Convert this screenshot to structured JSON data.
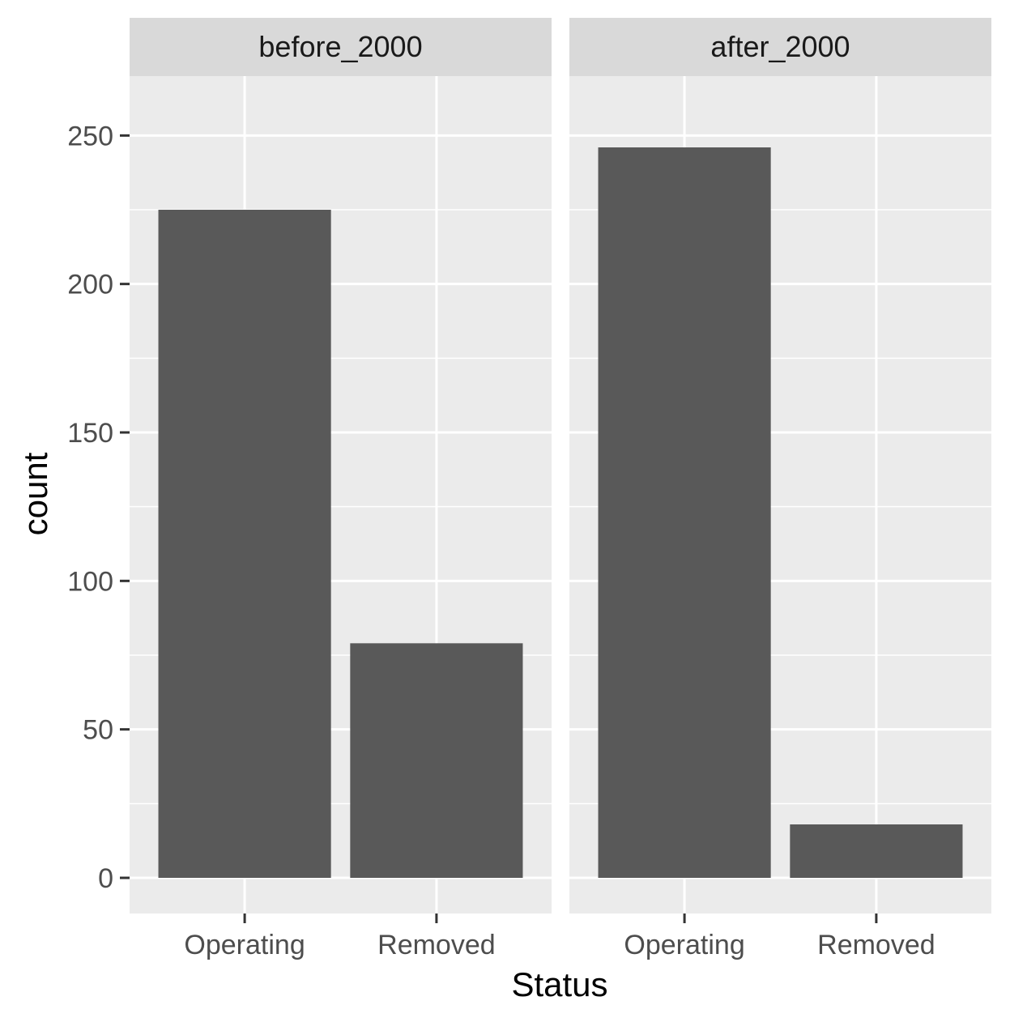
{
  "chart_data": {
    "type": "bar",
    "facet_by": "period",
    "xlabel": "Status",
    "ylabel": "count",
    "ylim": [
      -12,
      270
    ],
    "yticks": [
      0,
      50,
      100,
      150,
      200,
      250
    ],
    "ytick_labels": [
      "0",
      "50",
      "100",
      "150",
      "200",
      "250"
    ],
    "categories": [
      "Operating",
      "Removed"
    ],
    "grid": true,
    "legend": "none",
    "facets": [
      {
        "label": "before_2000",
        "values": [
          225,
          79
        ]
      },
      {
        "label": "after_2000",
        "values": [
          246,
          18
        ]
      }
    ],
    "colors": {
      "bar": "#595959",
      "panel_bg": "#ebebeb",
      "strip_bg": "#d9d9d9",
      "grid": "#ffffff",
      "tick": "#333333"
    }
  }
}
